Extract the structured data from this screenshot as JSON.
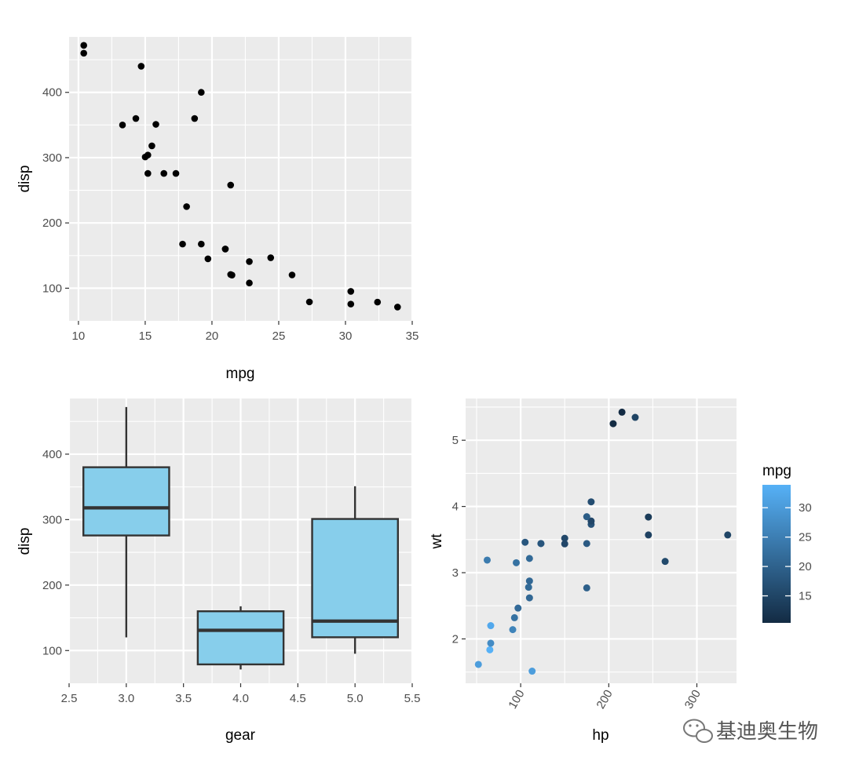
{
  "chart_data": [
    {
      "type": "scatter",
      "xlabel": "mpg",
      "ylabel": "disp",
      "xlim": [
        9.3,
        35.0
      ],
      "ylim": [
        50,
        485
      ],
      "xticks": [
        10,
        15,
        20,
        25,
        30,
        35
      ],
      "yticks": [
        100,
        200,
        300,
        400
      ],
      "point_color": "#000000",
      "points": [
        {
          "x": 21.0,
          "y": 160
        },
        {
          "x": 21.0,
          "y": 160
        },
        {
          "x": 22.8,
          "y": 108
        },
        {
          "x": 21.4,
          "y": 258
        },
        {
          "x": 18.7,
          "y": 360
        },
        {
          "x": 18.1,
          "y": 225
        },
        {
          "x": 14.3,
          "y": 360
        },
        {
          "x": 24.4,
          "y": 146.7
        },
        {
          "x": 22.8,
          "y": 140.8
        },
        {
          "x": 19.2,
          "y": 167.6
        },
        {
          "x": 17.8,
          "y": 167.6
        },
        {
          "x": 16.4,
          "y": 275.8
        },
        {
          "x": 17.3,
          "y": 275.8
        },
        {
          "x": 15.2,
          "y": 275.8
        },
        {
          "x": 10.4,
          "y": 472
        },
        {
          "x": 10.4,
          "y": 460
        },
        {
          "x": 14.7,
          "y": 440
        },
        {
          "x": 32.4,
          "y": 78.7
        },
        {
          "x": 30.4,
          "y": 75.7
        },
        {
          "x": 33.9,
          "y": 71.1
        },
        {
          "x": 21.5,
          "y": 120.1
        },
        {
          "x": 15.5,
          "y": 318
        },
        {
          "x": 15.2,
          "y": 304
        },
        {
          "x": 13.3,
          "y": 350
        },
        {
          "x": 19.2,
          "y": 400
        },
        {
          "x": 27.3,
          "y": 79
        },
        {
          "x": 26.0,
          "y": 120.3
        },
        {
          "x": 30.4,
          "y": 95.1
        },
        {
          "x": 15.8,
          "y": 351
        },
        {
          "x": 19.7,
          "y": 145
        },
        {
          "x": 15.0,
          "y": 301
        },
        {
          "x": 21.4,
          "y": 121
        }
      ]
    },
    {
      "type": "box",
      "xlabel": "gear",
      "ylabel": "disp",
      "xlim": [
        2.5,
        5.5
      ],
      "ylim": [
        50,
        485
      ],
      "xticks": [
        "2.5",
        "3.0",
        "3.5",
        "4.0",
        "4.5",
        "5.0",
        "5.5"
      ],
      "yticks": [
        100,
        200,
        300,
        400
      ],
      "fill": "#87CEEB",
      "boxes": [
        {
          "x": 3,
          "min": 120.1,
          "q1": 275.8,
          "median": 318,
          "q3": 380,
          "max": 472
        },
        {
          "x": 4,
          "min": 71.1,
          "q1": 78.85,
          "median": 130.9,
          "q3": 160,
          "max": 167.6
        },
        {
          "x": 5,
          "min": 95.1,
          "q1": 120.3,
          "median": 145,
          "q3": 301,
          "max": 351
        }
      ]
    },
    {
      "type": "scatter",
      "xlabel": "hp",
      "ylabel": "wt",
      "xlim": [
        37.5,
        345
      ],
      "ylim": [
        1.33,
        5.63
      ],
      "xticks": [
        "100",
        "200",
        "300"
      ],
      "yticks": [
        2,
        3,
        4,
        5
      ],
      "color_by": "mpg",
      "legend": {
        "title": "mpg",
        "ticks": [
          15,
          20,
          25,
          30
        ],
        "range": [
          10.4,
          33.9
        ],
        "position": "right"
      },
      "color_low": "#132B43",
      "color_high": "#56B1F7",
      "points": [
        {
          "x": 110,
          "y": 2.62,
          "mpg": 21.0
        },
        {
          "x": 110,
          "y": 2.875,
          "mpg": 21.0
        },
        {
          "x": 93,
          "y": 2.32,
          "mpg": 22.8
        },
        {
          "x": 110,
          "y": 3.215,
          "mpg": 21.4
        },
        {
          "x": 175,
          "y": 3.44,
          "mpg": 18.7
        },
        {
          "x": 105,
          "y": 3.46,
          "mpg": 18.1
        },
        {
          "x": 245,
          "y": 3.57,
          "mpg": 14.3
        },
        {
          "x": 62,
          "y": 3.19,
          "mpg": 24.4
        },
        {
          "x": 95,
          "y": 3.15,
          "mpg": 22.8
        },
        {
          "x": 123,
          "y": 3.44,
          "mpg": 19.2
        },
        {
          "x": 123,
          "y": 3.44,
          "mpg": 17.8
        },
        {
          "x": 180,
          "y": 4.07,
          "mpg": 16.4
        },
        {
          "x": 180,
          "y": 3.73,
          "mpg": 17.3
        },
        {
          "x": 180,
          "y": 3.78,
          "mpg": 15.2
        },
        {
          "x": 205,
          "y": 5.25,
          "mpg": 10.4
        },
        {
          "x": 215,
          "y": 5.424,
          "mpg": 10.4
        },
        {
          "x": 230,
          "y": 5.345,
          "mpg": 14.7
        },
        {
          "x": 66,
          "y": 2.2,
          "mpg": 32.4
        },
        {
          "x": 52,
          "y": 1.615,
          "mpg": 30.4
        },
        {
          "x": 65,
          "y": 1.835,
          "mpg": 33.9
        },
        {
          "x": 97,
          "y": 2.465,
          "mpg": 21.5
        },
        {
          "x": 150,
          "y": 3.52,
          "mpg": 15.5
        },
        {
          "x": 150,
          "y": 3.435,
          "mpg": 15.2
        },
        {
          "x": 245,
          "y": 3.84,
          "mpg": 13.3
        },
        {
          "x": 175,
          "y": 3.845,
          "mpg": 19.2
        },
        {
          "x": 66,
          "y": 1.935,
          "mpg": 27.3
        },
        {
          "x": 91,
          "y": 2.14,
          "mpg": 26.0
        },
        {
          "x": 113,
          "y": 1.513,
          "mpg": 30.4
        },
        {
          "x": 264,
          "y": 3.17,
          "mpg": 15.8
        },
        {
          "x": 175,
          "y": 2.77,
          "mpg": 19.7
        },
        {
          "x": 335,
          "y": 3.57,
          "mpg": 15.0
        },
        {
          "x": 109,
          "y": 2.78,
          "mpg": 21.4
        }
      ]
    }
  ],
  "watermark": {
    "text": "基迪奥生物",
    "icon": "wechat-icon"
  }
}
